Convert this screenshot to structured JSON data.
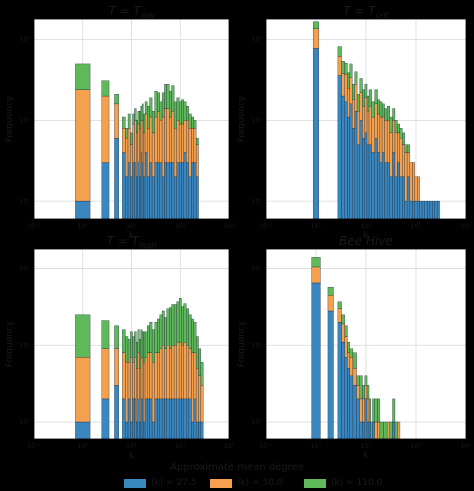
{
  "colors": {
    "blue": "#3a87c0",
    "orange": "#f4a04e",
    "green": "#5fb95a",
    "edge": "#1c2a3a",
    "grid": "#d8d8d8",
    "axis_text": "#1a1a1a"
  },
  "legend": {
    "title": "Approximate mean  degree",
    "items": [
      {
        "label": "⟨k⟩ ≈ 27.5",
        "color": "blue"
      },
      {
        "label": "⟨k⟩ ≈ 50.0",
        "color": "orange"
      },
      {
        "label": "⟨k⟩ ≈ 110.0",
        "color": "green"
      }
    ]
  },
  "chart_data": [
    {
      "type": "bar",
      "title": "T = T_low",
      "xlabel": "k",
      "ylabel": "Frequency",
      "xscale": "log",
      "yscale": "log",
      "xlim": [
        0.1,
        1000
      ],
      "ylim": [
        0.6,
        180
      ],
      "xticks": [
        "10⁻¹",
        "10⁰",
        "10¹",
        "10²",
        "10³"
      ],
      "yticks": [
        "10⁰",
        "10¹",
        "10²"
      ],
      "grid": true,
      "stacked": true,
      "bins": [
        1,
        2,
        3,
        4,
        5,
        6,
        7,
        8,
        9,
        10,
        11,
        12,
        13,
        14,
        15,
        16,
        17,
        18,
        20,
        22,
        25,
        28,
        32,
        36,
        40,
        45,
        50,
        56,
        63,
        70,
        80,
        90,
        100,
        112,
        125,
        140,
        160,
        180,
        200,
        224
      ],
      "series": [
        {
          "name": "⟨k⟩ ≈ 27.5",
          "values": [
            1,
            0,
            3,
            0,
            6,
            0,
            4,
            2,
            3,
            2,
            3,
            3,
            2,
            3,
            2,
            4,
            3,
            2,
            4,
            2,
            3,
            2,
            3,
            3,
            3,
            2,
            3,
            3,
            3,
            3,
            2,
            3,
            3,
            3,
            4,
            3,
            2,
            3,
            3,
            2
          ]
        },
        {
          "name": "⟨k⟩ ≈ 50.0",
          "values": [
            23,
            0,
            17,
            0,
            10,
            0,
            4,
            4,
            5,
            3,
            6,
            7,
            5,
            6,
            6,
            6,
            7,
            5,
            8,
            6,
            8,
            5,
            8,
            10,
            7,
            9,
            11,
            11,
            8,
            10,
            6,
            7,
            6,
            6,
            6,
            7,
            6,
            5,
            5,
            3
          ]
        },
        {
          "name": "⟨k⟩ ≈ 110.0",
          "values": [
            26,
            0,
            11,
            0,
            5,
            0,
            3,
            2,
            4,
            2,
            3,
            4,
            3,
            4,
            5,
            5,
            6,
            5,
            5,
            7,
            8,
            6,
            12,
            9,
            7,
            11,
            14,
            14,
            12,
            14,
            9,
            9,
            8,
            9,
            7,
            5,
            4,
            3,
            2,
            1
          ]
        }
      ]
    },
    {
      "type": "bar",
      "title": "T = T_crit",
      "xlabel": "k",
      "ylabel": "Frequency",
      "xscale": "log",
      "yscale": "log",
      "xlim": [
        0.1,
        1000
      ],
      "ylim": [
        0.6,
        180
      ],
      "xticks": [
        "10⁻¹",
        "10⁰",
        "10¹",
        "10²",
        "10³"
      ],
      "yticks": [
        "10⁰",
        "10¹",
        "10²"
      ],
      "grid": true,
      "stacked": true,
      "bins": [
        1,
        1.3,
        1.6,
        2,
        2.5,
        3,
        3.5,
        4,
        4.5,
        5,
        5.6,
        6.3,
        7,
        8,
        9,
        10,
        11,
        12,
        14,
        16,
        18,
        20,
        22,
        25,
        28,
        32,
        36,
        40,
        45,
        50,
        56,
        63,
        70,
        80,
        90,
        100,
        112,
        125,
        140,
        160,
        180,
        200,
        224,
        250,
        280
      ],
      "series": [
        {
          "name": "⟨k⟩ ≈ 27.5",
          "values": [
            78,
            0,
            0,
            0,
            0,
            36,
            20,
            17,
            11,
            16,
            8,
            13,
            5,
            10,
            6,
            7,
            5,
            5,
            4,
            6,
            4,
            3,
            4,
            3,
            3,
            2,
            4,
            2,
            3,
            2,
            2,
            1,
            2,
            1,
            1,
            1,
            1,
            1,
            1,
            1,
            1,
            1,
            1,
            1,
            1
          ]
        },
        {
          "name": "⟨k⟩ ≈ 50.0",
          "values": [
            58,
            0,
            0,
            0,
            0,
            26,
            18,
            20,
            14,
            18,
            10,
            15,
            8,
            12,
            9,
            12,
            8,
            10,
            7,
            10,
            8,
            8,
            7,
            7,
            7,
            5,
            6,
            5,
            4,
            4,
            3,
            3,
            2,
            2,
            2,
            1,
            1,
            0,
            0,
            0,
            0,
            0,
            0,
            0,
            0
          ]
        },
        {
          "name": "⟨k⟩ ≈ 110.0",
          "values": [
            30,
            0,
            0,
            0,
            0,
            20,
            16,
            14,
            14,
            16,
            10,
            12,
            8,
            11,
            9,
            9,
            7,
            9,
            6,
            8,
            6,
            6,
            5,
            4,
            5,
            4,
            4,
            3,
            2,
            2,
            2,
            1,
            1,
            0,
            0,
            0,
            0,
            0,
            0,
            0,
            0,
            0,
            0,
            0,
            0
          ]
        }
      ]
    },
    {
      "type": "bar",
      "title": "T = T_high",
      "xlabel": "k",
      "ylabel": "Frequency",
      "xscale": "log",
      "yscale": "log",
      "xlim": [
        0.1,
        1000
      ],
      "ylim": [
        0.6,
        180
      ],
      "xticks": [
        "10⁻¹",
        "10⁰",
        "10¹",
        "10²",
        "10³"
      ],
      "yticks": [
        "10⁰",
        "10¹",
        "10²"
      ],
      "grid": true,
      "stacked": true,
      "bins": [
        1,
        2,
        3,
        4,
        5,
        6,
        7,
        8,
        9,
        10,
        11,
        12,
        13,
        14,
        15,
        16,
        17,
        18,
        20,
        22,
        25,
        28,
        32,
        36,
        40,
        45,
        50,
        56,
        63,
        70,
        80,
        90,
        100,
        112,
        125,
        140,
        160,
        180,
        200,
        224,
        250,
        280
      ],
      "series": [
        {
          "name": "⟨k⟩ ≈ 27.5",
          "values": [
            1,
            0,
            2,
            0,
            3,
            0,
            2,
            1,
            2,
            1,
            2,
            2,
            1,
            2,
            1,
            2,
            2,
            1,
            2,
            2,
            2,
            1,
            2,
            2,
            2,
            2,
            2,
            2,
            2,
            2,
            2,
            2,
            2,
            2,
            2,
            2,
            2,
            1,
            2,
            1,
            1,
            1
          ]
        },
        {
          "name": "⟨k⟩ ≈ 50.0",
          "values": [
            6,
            0,
            7,
            0,
            6,
            0,
            6,
            5,
            4,
            6,
            4,
            5,
            4,
            6,
            4,
            5,
            5,
            5,
            5,
            6,
            6,
            5,
            6,
            6,
            7,
            8,
            7,
            8,
            7,
            8,
            8,
            9,
            9,
            8,
            9,
            8,
            7,
            7,
            6,
            4,
            3,
            2
          ]
        },
        {
          "name": "⟨k⟩ ≈ 110.0",
          "values": [
            18,
            0,
            12,
            0,
            9,
            0,
            8,
            7,
            6,
            8,
            7,
            8,
            6,
            8,
            7,
            9,
            8,
            9,
            8,
            10,
            12,
            10,
            12,
            14,
            16,
            18,
            14,
            20,
            22,
            24,
            24,
            26,
            30,
            22,
            24,
            20,
            16,
            14,
            12,
            8,
            5,
            3
          ]
        }
      ]
    },
    {
      "type": "bar",
      "title": "Bee Hive",
      "xlabel": "k",
      "ylabel": "Frequency",
      "xscale": "log",
      "yscale": "log",
      "xlim": [
        0.1,
        1000
      ],
      "ylim": [
        0.6,
        180
      ],
      "xticks": [
        "10⁻¹",
        "10⁰",
        "10¹",
        "10²",
        "10³"
      ],
      "yticks": [
        "10⁰",
        "10¹",
        "10²"
      ],
      "grid": true,
      "stacked": true,
      "bins": [
        1,
        1.5,
        2,
        2.5,
        3,
        3.5,
        4,
        4.5,
        5,
        6,
        7,
        8,
        9,
        10,
        11,
        12,
        13,
        14,
        16,
        18,
        20,
        25,
        28,
        32,
        36,
        40,
        45
      ],
      "series": [
        {
          "name": "⟨k⟩ ≈ 27.5",
          "values": [
            65,
            0,
            28,
            0,
            20,
            11,
            7,
            5,
            4,
            3,
            2,
            1,
            1,
            2,
            1,
            1,
            0,
            1,
            0,
            0,
            0,
            0,
            0,
            0,
            1,
            0,
            0
          ]
        },
        {
          "name": "⟨k⟩ ≈ 50.0",
          "values": [
            40,
            0,
            17,
            0,
            10,
            8,
            6,
            3,
            3,
            2,
            1,
            1,
            1,
            1,
            1,
            0,
            0,
            0,
            1,
            1,
            0,
            0,
            1,
            0,
            0,
            0,
            1
          ]
        },
        {
          "name": "⟨k⟩ ≈ 110.0",
          "values": [
            35,
            0,
            12,
            0,
            7,
            6,
            5,
            3,
            2,
            3,
            1,
            2,
            1,
            1,
            1,
            1,
            1,
            1,
            1,
            1,
            1,
            1,
            0,
            1,
            1,
            1,
            0
          ]
        }
      ]
    }
  ]
}
